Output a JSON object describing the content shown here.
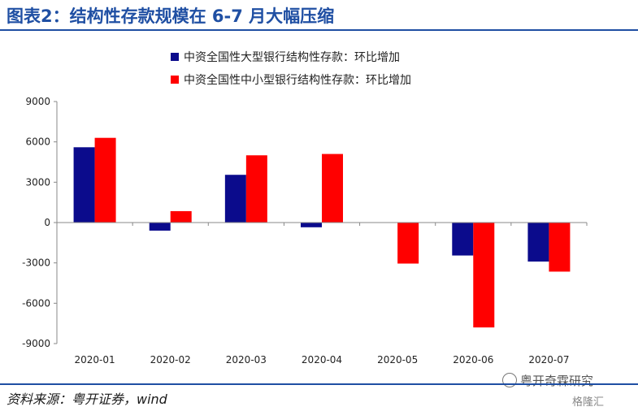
{
  "header": {
    "title": "图表2：结构性存款规模在 6-7 月大幅压缩"
  },
  "footer": {
    "source": "资料来源：粤开证券，wind"
  },
  "watermark": {
    "primary": "粤开奇霖研究",
    "secondary": "格隆汇"
  },
  "chart_data": {
    "type": "bar",
    "categories": [
      "2020-01",
      "2020-02",
      "2020-03",
      "2020-04",
      "2020-05",
      "2020-06",
      "2020-07"
    ],
    "series": [
      {
        "name": "中资全国性大型银行结构性存款：环比增加",
        "color": "#0b0b8c",
        "values": [
          5600,
          -600,
          3550,
          -350,
          0,
          -2450,
          -2900
        ]
      },
      {
        "name": "中资全国性中小型银行结构性存款：环比增加",
        "color": "#ff0000",
        "values": [
          6300,
          850,
          5000,
          5100,
          -3050,
          -7800,
          -3650
        ]
      }
    ],
    "ylim": [
      -9000,
      9000
    ],
    "yticks": [
      9000,
      6000,
      3000,
      0,
      -3000,
      -6000,
      -9000
    ],
    "ytick_labels": [
      "9000",
      "6000",
      "3000",
      "0",
      "-3000",
      "-6000",
      "-9000"
    ],
    "grid": false,
    "legend_position": "top"
  }
}
